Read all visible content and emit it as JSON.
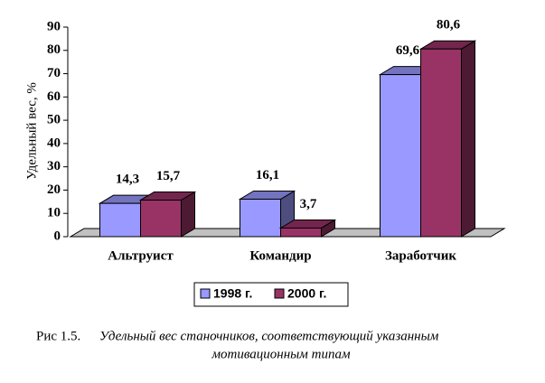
{
  "chart_data": {
    "type": "bar3d",
    "y_label": "Удельный вес, %",
    "categories": [
      "Альтруист",
      "Командир",
      "Заработчик"
    ],
    "series": [
      {
        "name": "1998 г.",
        "color": "#9999ff",
        "values": [
          14.3,
          16.1,
          69.6
        ],
        "value_labels": [
          "14,3",
          "16,1",
          "69,6"
        ]
      },
      {
        "name": "2000 г.",
        "color": "#993366",
        "values": [
          15.7,
          3.7,
          80.6
        ],
        "value_labels": [
          "15,7",
          "3,7",
          "80,6"
        ]
      }
    ],
    "ylim": [
      0,
      90
    ],
    "yticks": [
      0,
      10,
      20,
      30,
      40,
      50,
      60,
      70,
      80,
      90
    ]
  },
  "caption": {
    "label": "Рис 1.5.",
    "text_line1": "Удельный вес станочников, соответствующий указанным",
    "text_line2": "мотивационным типам"
  }
}
